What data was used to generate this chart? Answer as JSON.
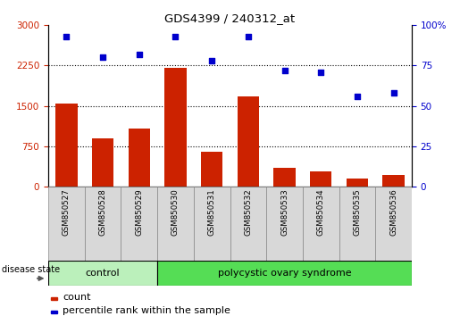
{
  "title": "GDS4399 / 240312_at",
  "samples": [
    "GSM850527",
    "GSM850528",
    "GSM850529",
    "GSM850530",
    "GSM850531",
    "GSM850532",
    "GSM850533",
    "GSM850534",
    "GSM850535",
    "GSM850536"
  ],
  "counts": [
    1540,
    900,
    1080,
    2200,
    640,
    1680,
    350,
    280,
    155,
    210
  ],
  "percentiles": [
    93,
    80,
    82,
    93,
    78,
    93,
    72,
    71,
    56,
    58
  ],
  "ylim_left": [
    0,
    3000
  ],
  "ylim_right": [
    0,
    100
  ],
  "yticks_left": [
    0,
    750,
    1500,
    2250,
    3000
  ],
  "yticks_right": [
    0,
    25,
    50,
    75,
    100
  ],
  "bar_color": "#cc2200",
  "scatter_color": "#0000cc",
  "control_color": "#bbf0bb",
  "pcos_color": "#55dd55",
  "control_samples": 3,
  "group_labels": [
    "control",
    "polycystic ovary syndrome"
  ],
  "legend_items": [
    "count",
    "percentile rank within the sample"
  ],
  "disease_state_label": "disease state",
  "grid_yticks": [
    750,
    1500,
    2250
  ]
}
